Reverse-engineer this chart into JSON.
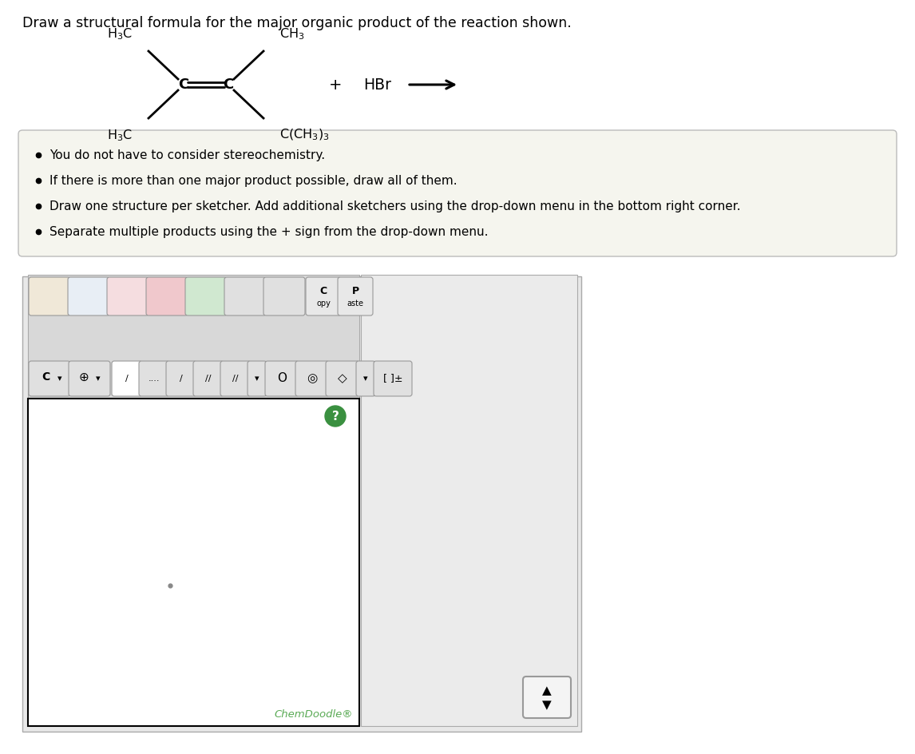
{
  "title": "Draw a structural formula for the major organic product of the reaction shown.",
  "title_fontsize": 12.5,
  "bg_color": "#ffffff",
  "outer_bg": "#f0f0f0",
  "bullet_box_color": "#f5f5ee",
  "bullet_box_border": "#cccccc",
  "bullets": [
    "You do not have to consider stereochemistry.",
    "If there is more than one major product possible, draw all of them.",
    "Draw one structure per sketcher. Add additional sketchers using the drop-down menu in the bottom right corner.",
    "Separate multiple products using the + sign from the drop-down menu."
  ],
  "bullet_fontsize": 11.5,
  "chemdoodle_text": "ChemDoodle",
  "chemdoodle_color": "#5aaa55",
  "sketcher_bg": "#ffffff",
  "toolbar_bg": "#d8d8d8",
  "hbr_text": "HBr",
  "plus_text": "+",
  "toolbar_outer_bg": "#e8e8e8",
  "right_panel_bg": "#ebebeb"
}
